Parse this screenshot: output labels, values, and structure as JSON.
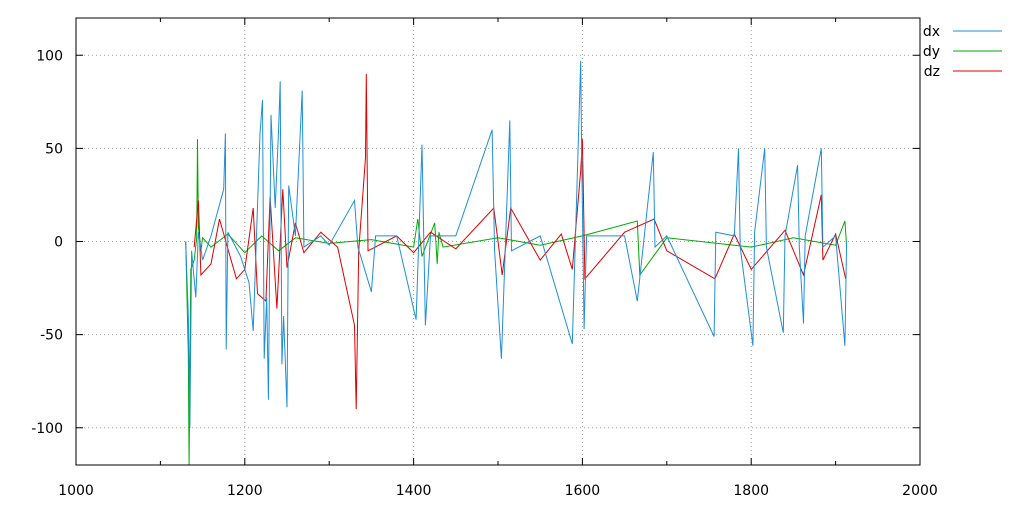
{
  "chart_data": {
    "type": "line",
    "title": "",
    "xlabel": "",
    "ylabel": "",
    "xlim": [
      1000,
      2000
    ],
    "ylim": [
      -120,
      120
    ],
    "x_ticks": [
      "1000",
      "1200",
      "1400",
      "1600",
      "1800",
      "2000"
    ],
    "y_ticks": [
      "100",
      "50",
      "0",
      "-50",
      "-100"
    ],
    "grid": true,
    "legend_position": "top-right",
    "colors": {
      "dx": "#1f8fd6",
      "dy": "#00aa00",
      "dz": "#dd0000"
    },
    "series": [
      {
        "name": "dy",
        "color": "#00aa00",
        "points": [
          [
            1130,
            0
          ],
          [
            1133,
            -60
          ],
          [
            1134,
            -120
          ],
          [
            1136,
            -15
          ],
          [
            1140,
            -10
          ],
          [
            1143,
            2
          ],
          [
            1144,
            55
          ],
          [
            1145,
            8
          ],
          [
            1148,
            -5
          ],
          [
            1150,
            2
          ],
          [
            1160,
            -3
          ],
          [
            1180,
            4
          ],
          [
            1200,
            -6
          ],
          [
            1220,
            3
          ],
          [
            1240,
            -5
          ],
          [
            1260,
            2
          ],
          [
            1300,
            -1
          ],
          [
            1350,
            1
          ],
          [
            1400,
            -3
          ],
          [
            1405,
            12
          ],
          [
            1410,
            -8
          ],
          [
            1425,
            10
          ],
          [
            1428,
            -12
          ],
          [
            1430,
            5
          ],
          [
            1435,
            -3
          ],
          [
            1500,
            2
          ],
          [
            1550,
            -2
          ],
          [
            1600,
            3
          ],
          [
            1665,
            11
          ],
          [
            1668,
            -18
          ],
          [
            1700,
            2
          ],
          [
            1800,
            -3
          ],
          [
            1850,
            2
          ],
          [
            1900,
            -2
          ],
          [
            1911,
            11
          ],
          [
            1913,
            -2
          ]
        ]
      },
      {
        "name": "dz",
        "color": "#dd0000",
        "points": [
          [
            1140,
            -3
          ],
          [
            1145,
            22
          ],
          [
            1148,
            -18
          ],
          [
            1160,
            -12
          ],
          [
            1170,
            12
          ],
          [
            1190,
            -20
          ],
          [
            1200,
            -15
          ],
          [
            1210,
            18
          ],
          [
            1215,
            -28
          ],
          [
            1225,
            -32
          ],
          [
            1230,
            24
          ],
          [
            1238,
            -36
          ],
          [
            1245,
            28
          ],
          [
            1250,
            -14
          ],
          [
            1260,
            10
          ],
          [
            1270,
            -6
          ],
          [
            1290,
            5
          ],
          [
            1310,
            -3
          ],
          [
            1330,
            -45
          ],
          [
            1332,
            -90
          ],
          [
            1335,
            -5
          ],
          [
            1343,
            45
          ],
          [
            1344,
            90
          ],
          [
            1346,
            -5
          ],
          [
            1380,
            3
          ],
          [
            1400,
            -6
          ],
          [
            1420,
            5
          ],
          [
            1450,
            -4
          ],
          [
            1495,
            18
          ],
          [
            1505,
            -18
          ],
          [
            1515,
            18
          ],
          [
            1550,
            -10
          ],
          [
            1575,
            4
          ],
          [
            1588,
            -15
          ],
          [
            1598,
            38
          ],
          [
            1600,
            55
          ],
          [
            1603,
            -20
          ],
          [
            1650,
            5
          ],
          [
            1685,
            12
          ],
          [
            1700,
            -5
          ],
          [
            1757,
            -20
          ],
          [
            1780,
            4
          ],
          [
            1800,
            -15
          ],
          [
            1840,
            6
          ],
          [
            1862,
            -18
          ],
          [
            1883,
            25
          ],
          [
            1885,
            -10
          ],
          [
            1900,
            4
          ],
          [
            1912,
            -20
          ]
        ]
      },
      {
        "name": "dx",
        "color": "#1f8fd6",
        "points": [
          [
            1130,
            0
          ],
          [
            1133,
            -40
          ],
          [
            1135,
            -100
          ],
          [
            1137,
            -5
          ],
          [
            1142,
            -30
          ],
          [
            1145,
            5
          ],
          [
            1150,
            -10
          ],
          [
            1160,
            3
          ],
          [
            1175,
            28
          ],
          [
            1177,
            58
          ],
          [
            1178,
            -58
          ],
          [
            1180,
            5
          ],
          [
            1195,
            -8
          ],
          [
            1205,
            -22
          ],
          [
            1210,
            -48
          ],
          [
            1218,
            58
          ],
          [
            1221,
            76
          ],
          [
            1223,
            -63
          ],
          [
            1226,
            -30
          ],
          [
            1228,
            -85
          ],
          [
            1231,
            68
          ],
          [
            1236,
            18
          ],
          [
            1240,
            60
          ],
          [
            1242,
            86
          ],
          [
            1244,
            -66
          ],
          [
            1246,
            -40
          ],
          [
            1250,
            -89
          ],
          [
            1252,
            30
          ],
          [
            1260,
            3
          ],
          [
            1268,
            81
          ],
          [
            1270,
            -3
          ],
          [
            1290,
            3
          ],
          [
            1300,
            -2
          ],
          [
            1330,
            22
          ],
          [
            1334,
            -3
          ],
          [
            1350,
            -27
          ],
          [
            1355,
            3
          ],
          [
            1380,
            3
          ],
          [
            1403,
            -42
          ],
          [
            1410,
            52
          ],
          [
            1414,
            -45
          ],
          [
            1420,
            3
          ],
          [
            1450,
            3
          ],
          [
            1493,
            60
          ],
          [
            1496,
            -5
          ],
          [
            1504,
            -63
          ],
          [
            1514,
            65
          ],
          [
            1516,
            -5
          ],
          [
            1550,
            3
          ],
          [
            1588,
            -55
          ],
          [
            1598,
            97
          ],
          [
            1599,
            50
          ],
          [
            1602,
            -47
          ],
          [
            1605,
            3
          ],
          [
            1650,
            3
          ],
          [
            1665,
            -32
          ],
          [
            1684,
            48
          ],
          [
            1686,
            -3
          ],
          [
            1700,
            3
          ],
          [
            1756,
            -51
          ],
          [
            1758,
            5
          ],
          [
            1780,
            3
          ],
          [
            1785,
            50
          ],
          [
            1787,
            -3
          ],
          [
            1802,
            -56
          ],
          [
            1804,
            5
          ],
          [
            1816,
            50
          ],
          [
            1818,
            -3
          ],
          [
            1838,
            -49
          ],
          [
            1840,
            3
          ],
          [
            1855,
            41
          ],
          [
            1857,
            -3
          ],
          [
            1862,
            -44
          ],
          [
            1864,
            3
          ],
          [
            1883,
            50
          ],
          [
            1885,
            -3
          ],
          [
            1900,
            3
          ],
          [
            1911,
            -56
          ],
          [
            1913,
            0
          ]
        ]
      }
    ]
  }
}
